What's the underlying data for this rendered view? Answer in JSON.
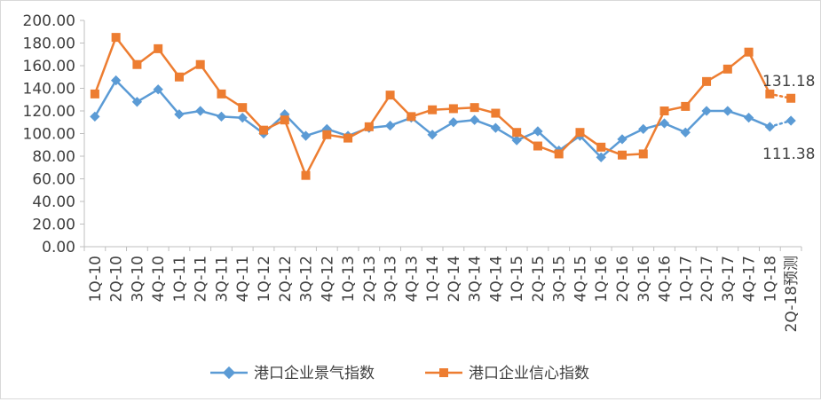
{
  "chart_data": {
    "type": "line",
    "categories": [
      "1Q-10",
      "2Q-10",
      "3Q-10",
      "4Q-10",
      "1Q-11",
      "2Q-11",
      "3Q-11",
      "4Q-11",
      "1Q-12",
      "2Q-12",
      "3Q-12",
      "4Q-12",
      "1Q-13",
      "2Q-13",
      "3Q-13",
      "4Q-13",
      "1Q-14",
      "2Q-14",
      "3Q-14",
      "4Q-14",
      "1Q-15",
      "2Q-15",
      "3Q-15",
      "4Q-15",
      "1Q-16",
      "2Q-16",
      "3Q-16",
      "4Q-16",
      "1Q-17",
      "2Q-17",
      "3Q-17",
      "4Q-17",
      "1Q-18",
      "2Q-18预测"
    ],
    "series": [
      {
        "name": "港口企业景气指数",
        "color": "#5b9bd5",
        "marker": "diamond",
        "values": [
          115,
          147,
          128,
          139,
          117,
          120,
          115,
          114,
          100,
          117,
          98,
          104,
          98,
          105,
          107,
          114,
          99,
          110,
          112,
          105,
          94,
          102,
          85,
          98,
          79,
          95,
          104,
          109,
          101,
          120,
          120,
          114,
          106,
          111.38
        ]
      },
      {
        "name": "港口企业信心指数",
        "color": "#ed7d31",
        "marker": "square",
        "values": [
          135,
          185,
          161,
          175,
          150,
          161,
          135,
          123,
          103,
          112,
          63,
          99,
          96,
          106,
          134,
          115,
          121,
          122,
          123,
          118,
          101,
          89,
          82,
          101,
          88,
          81,
          82,
          120,
          124,
          146,
          157,
          172,
          135,
          131.18
        ]
      }
    ],
    "forecast_last_point": true,
    "annotations": [
      "131.18",
      "111.38"
    ],
    "ylim": [
      0,
      200
    ],
    "yticks": [
      "0.00",
      "20.00",
      "40.00",
      "60.00",
      "80.00",
      "100.00",
      "120.00",
      "140.00",
      "160.00",
      "180.00",
      "200.00"
    ],
    "grid": false,
    "legend_position": "bottom"
  }
}
